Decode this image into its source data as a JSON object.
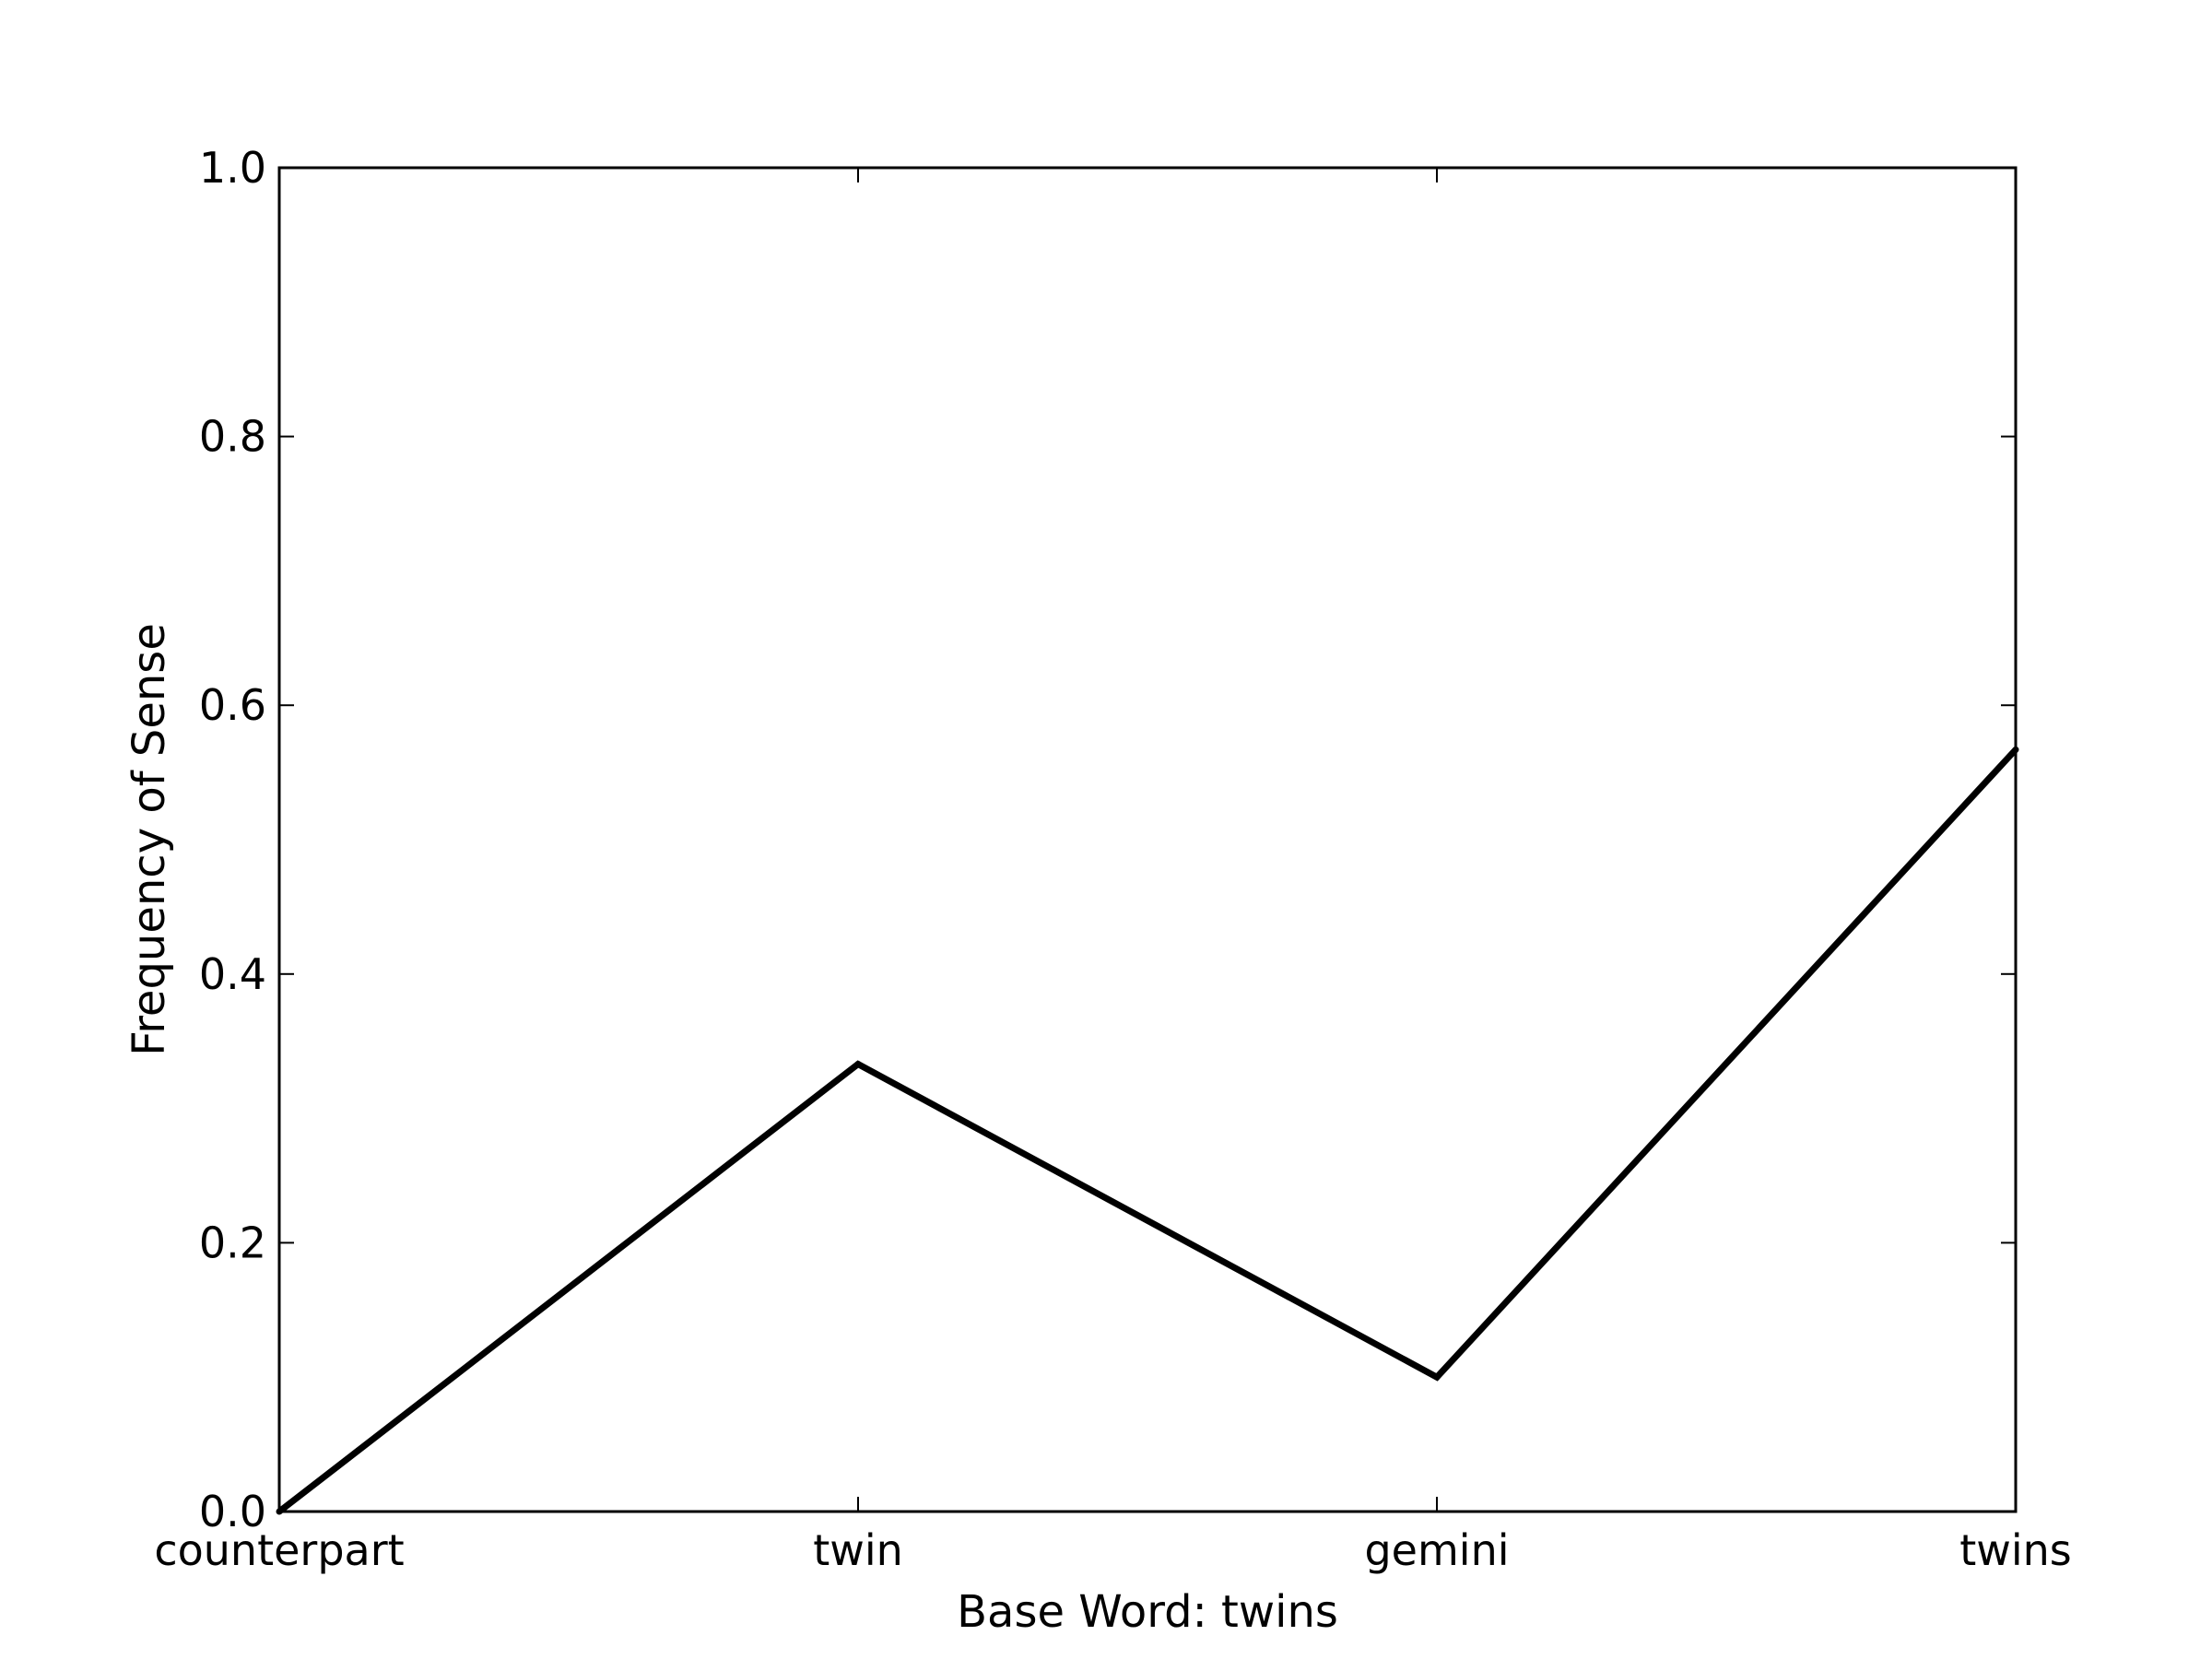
{
  "chart_data": {
    "type": "line",
    "categories": [
      "counterpart",
      "twin",
      "gemini",
      "twins"
    ],
    "series": [
      {
        "values": [
          0.0,
          0.333,
          0.1,
          0.567
        ]
      }
    ],
    "xlabel": "Base Word: twins",
    "ylabel": "Frequency of Sense",
    "ylim": [
      0.0,
      1.0
    ],
    "yticks": [
      "0.0",
      "0.2",
      "0.4",
      "0.6",
      "0.8",
      "1.0"
    ],
    "grid": false,
    "line_color": "#000000"
  }
}
